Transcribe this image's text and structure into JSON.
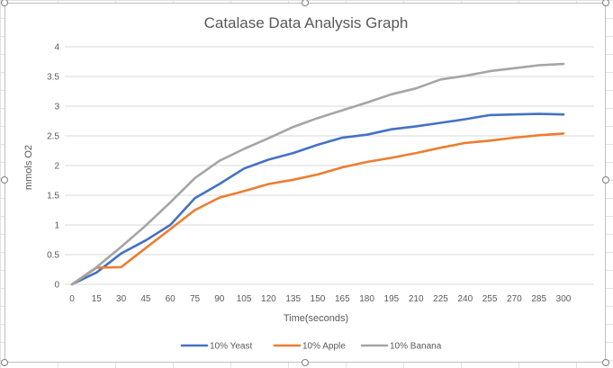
{
  "chart_data": {
    "type": "line",
    "title": "Catalase Data Analysis Graph",
    "xlabel": "Time(seconds)",
    "ylabel": "mmols O2",
    "ylim": [
      0,
      4
    ],
    "yticks": [
      "0",
      "0.5",
      "1",
      "1.5",
      "2",
      "2.5",
      "3",
      "3.5",
      "4"
    ],
    "categories": [
      "0",
      "15",
      "30",
      "45",
      "60",
      "75",
      "90",
      "105",
      "120",
      "135",
      "150",
      "165",
      "180",
      "195",
      "210",
      "225",
      "240",
      "255",
      "270",
      "285",
      "300"
    ],
    "grid": true,
    "legend_position": "bottom",
    "series": [
      {
        "name": "10% Yeast",
        "color": "#4472c4",
        "values": [
          0,
          0.2,
          0.52,
          0.74,
          1.0,
          1.45,
          1.69,
          1.95,
          2.1,
          2.21,
          2.35,
          2.47,
          2.52,
          2.61,
          2.66,
          2.72,
          2.78,
          2.85,
          2.86,
          2.87,
          2.86
        ]
      },
      {
        "name": "10% Apple",
        "color": "#ed7d31",
        "values": [
          0,
          0.28,
          0.29,
          0.61,
          0.93,
          1.25,
          1.46,
          1.57,
          1.69,
          1.76,
          1.85,
          1.97,
          2.06,
          2.13,
          2.21,
          2.3,
          2.38,
          2.42,
          2.47,
          2.51,
          2.54
        ]
      },
      {
        "name": "10% Banana",
        "color": "#a5a5a5",
        "values": [
          0,
          0.29,
          0.63,
          0.99,
          1.38,
          1.79,
          2.08,
          2.28,
          2.46,
          2.65,
          2.8,
          2.93,
          3.06,
          3.2,
          3.3,
          3.45,
          3.51,
          3.59,
          3.64,
          3.69,
          3.71
        ]
      }
    ]
  }
}
